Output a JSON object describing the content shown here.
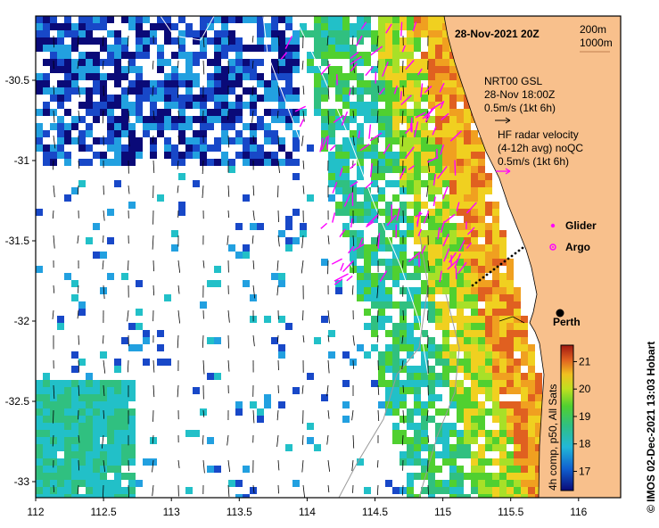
{
  "title": "28-Nov-2021 20Z",
  "isobaths": [
    "200m",
    "1000m"
  ],
  "nrt_legend": {
    "line1": "NRT00 GSL",
    "line2": "28-Nov 18:00Z",
    "line3": "0.5m/s (1kt 6h)"
  },
  "hf_legend": {
    "line1": "HF radar velocity",
    "line2": "(4-12h avg) noQC",
    "line3": "0.5m/s (1kt 6h)"
  },
  "markers": {
    "glider": "Glider",
    "argo": "Argo",
    "city": "Perth"
  },
  "colors": {
    "land": "#f8c08c",
    "glider": "#ff00ff",
    "argo": "#ff00ff",
    "frame": "#000000"
  },
  "colorbar": {
    "label": "4h comp, p50, All Sats",
    "ticks": [
      "21",
      "20",
      "19",
      "18",
      "17"
    ],
    "min": 16.3,
    "max": 21.6
  },
  "x_axis": {
    "ticks": [
      "112",
      "112.5",
      "113",
      "113.5",
      "114",
      "114.5",
      "115",
      "115.5",
      "116"
    ]
  },
  "y_axis": {
    "ticks": [
      "-30.5",
      "-31",
      "-31.5",
      "-32",
      "-32.5",
      "-33"
    ]
  },
  "credit": "© IMOS 02-Dec-2021 13:03 Hobart"
}
